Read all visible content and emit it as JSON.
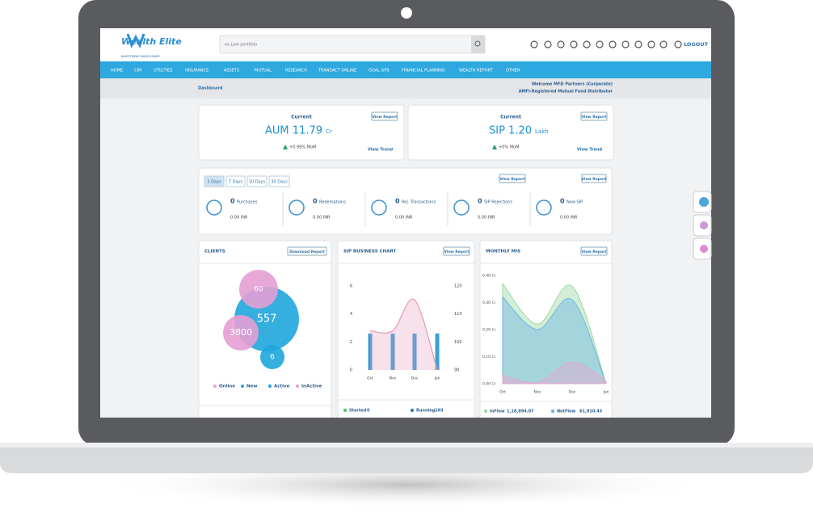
{
  "header": {
    "logo": "Wealth Elite",
    "tagline": "INVESTMENT MADE EASIER",
    "search_placeholder": "ex.Live portfolio",
    "logout": "LOGOUT"
  },
  "nav": [
    "HOME",
    "CIM",
    "UTILITIES",
    "INSURANCE",
    "ASSETS",
    "MUTUAL",
    "RESEARCH",
    "TRANSACT ONLINE",
    "GOAL GPS",
    "FINANCIAL PLANNING",
    "WEALTH REPORT",
    "OTHER"
  ],
  "breadcrumb": "Dashboard",
  "welcome": [
    "Welcome MFD Partners (Corporate)",
    "AMFI-Registered Mutual Fund Distributor"
  ],
  "aum": {
    "label": "Current",
    "title": "AUM 11.79",
    "unit": "Cr",
    "change": "+0.99% MoM",
    "view_report": "View Report",
    "view_trend": "View Trend"
  },
  "sip": {
    "label": "Current",
    "title": "SIP 1.20",
    "unit": "Lakh",
    "change": "+0% MoM",
    "view_report": "View Report",
    "view_trend": "View Trend"
  },
  "transactions": {
    "tabs": [
      "3 Days",
      "7 Days",
      "10 Days",
      "30 Days"
    ],
    "view_report": [
      "View Report",
      "View Report"
    ],
    "items": [
      {
        "count": 0,
        "label": "Purchases",
        "amount": "0.00 INR"
      },
      {
        "count": 0,
        "label": "Redemptions",
        "amount": "0.00 INR"
      },
      {
        "count": 0,
        "label": "Rej. Transactions",
        "amount": "0.00 INR"
      },
      {
        "count": 0,
        "label": "SIP Rejections",
        "amount": "0.00 INR"
      },
      {
        "count": 0,
        "label": "New SIP",
        "amount": "0.00 INR"
      }
    ]
  },
  "clients": {
    "title": "CLIENTS",
    "download": "Download Report",
    "bubbles": [
      {
        "value": 60,
        "color": "#e49fd4"
      },
      {
        "value": 557,
        "color": "#1ea6dc"
      },
      {
        "value": 3800,
        "color": "#e49fd4"
      },
      {
        "value": 6,
        "color": "#1ea6dc"
      }
    ],
    "legend": [
      {
        "name": "Online",
        "color": "#e49fd4"
      },
      {
        "name": "New",
        "color": "#1ea6dc"
      },
      {
        "name": "Active",
        "color": "#1ea6dc"
      },
      {
        "name": "InActive",
        "color": "#e49fd4"
      }
    ]
  },
  "sip_chart": {
    "title": "SIP BUSINESS CHART",
    "view_report": "View Report",
    "categories": [
      "Oct",
      "Nov",
      "Dec",
      "Jan"
    ],
    "ylim": [
      0,
      6
    ],
    "yticks": [
      0,
      2,
      4,
      6
    ],
    "y2lim": [
      90,
      120
    ],
    "y2ticks": [
      90,
      100,
      110,
      120
    ],
    "series": [
      {
        "color": "#3b9ed8",
        "values": [
          2.6,
          2.6,
          2.6,
          2.6
        ]
      },
      {
        "color": "#e59ab8",
        "axis": "y2",
        "values": [
          104,
          104,
          115,
          90
        ]
      }
    ],
    "footer": [
      {
        "name": "Started",
        "value": 0,
        "color": "#5cc17a"
      },
      {
        "name": "Running",
        "value": 103,
        "color": "#2f7fc1"
      }
    ]
  },
  "mis": {
    "title": "MONTHLY MIS",
    "view_report": "View Report",
    "categories": [
      "Oct",
      "Nov",
      "Dec",
      "Jan"
    ],
    "ylim": [
      0,
      0.4
    ],
    "yticks": [
      {
        "value": 0,
        "label": "0.00 Cr"
      },
      {
        "value": 0.1,
        "label": "0.10 Cr"
      },
      {
        "value": 0.2,
        "label": "0.20 Cr"
      },
      {
        "value": 0.3,
        "label": "0.30 Cr"
      },
      {
        "value": 0.4,
        "label": "0.40 Cr"
      }
    ],
    "series": [
      {
        "name": "InFlow",
        "color": "#9ed9a4",
        "values": [
          0.37,
          0.22,
          0.36,
          0
        ],
        "total": "1,18,894.07"
      },
      {
        "name": "NetFlow",
        "color": "#6cb6e4",
        "values": [
          0.32,
          0.2,
          0.31,
          0
        ],
        "total": "61,910.43"
      },
      {
        "color": "#e7a6cf",
        "values": [
          0.03,
          0.005,
          0.08,
          0.01
        ]
      }
    ]
  }
}
